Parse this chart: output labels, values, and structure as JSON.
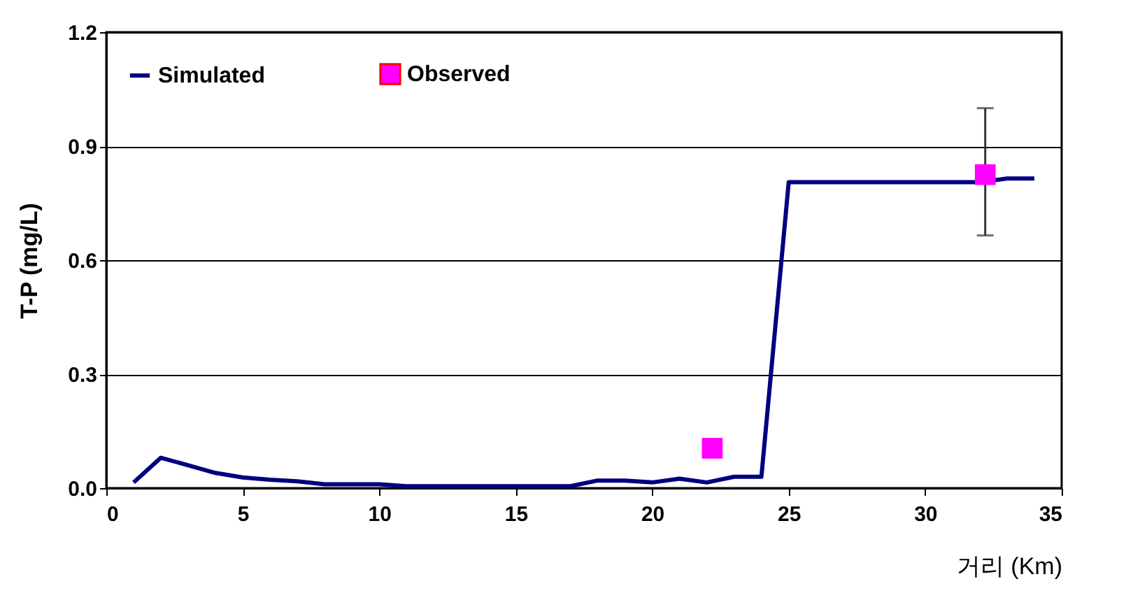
{
  "chart_data": {
    "type": "line",
    "xlabel": "거리 (Km)",
    "ylabel": "T-P (mg/L)",
    "xlim": [
      0,
      35
    ],
    "xticks": [
      0,
      5,
      10,
      15,
      20,
      25,
      30,
      35
    ],
    "ylim": [
      0,
      1.2
    ],
    "yticks": [
      {
        "value": 0,
        "label": "0.0"
      },
      {
        "value": 0.3,
        "label": "0.3"
      },
      {
        "value": 0.6,
        "label": "0.6"
      },
      {
        "value": 0.9,
        "label": "0.9"
      },
      {
        "value": 1.2,
        "label": "1.2"
      }
    ],
    "grid": "y",
    "legend": "top left",
    "line_style": "solid",
    "series": [
      {
        "name": "Simulated",
        "color": "#000080",
        "marker": "none",
        "x": [
          1,
          2,
          3,
          4,
          5,
          6,
          7,
          8,
          9,
          10,
          11,
          12,
          13,
          14,
          15,
          16,
          17,
          18,
          19,
          20,
          21,
          22,
          23,
          24,
          25,
          26,
          27,
          28,
          29,
          30,
          31,
          32,
          33,
          34
        ],
        "values": [
          0.015,
          0.08,
          0.06,
          0.04,
          0.028,
          0.022,
          0.018,
          0.01,
          0.01,
          0.01,
          0.005,
          0.005,
          0.005,
          0.005,
          0.005,
          0.005,
          0.005,
          0.02,
          0.02,
          0.015,
          0.025,
          0.015,
          0.03,
          0.03,
          0.805,
          0.805,
          0.805,
          0.805,
          0.805,
          0.805,
          0.805,
          0.805,
          0.815,
          0.815
        ]
      },
      {
        "name": "Observed",
        "type": "scatter",
        "color": "#ff00ff",
        "marker": "square",
        "x": [
          22.2,
          32.2
        ],
        "values": [
          0.105,
          0.825
        ],
        "errors": [
          null,
          [
            0.665,
            1.0
          ]
        ]
      }
    ]
  }
}
